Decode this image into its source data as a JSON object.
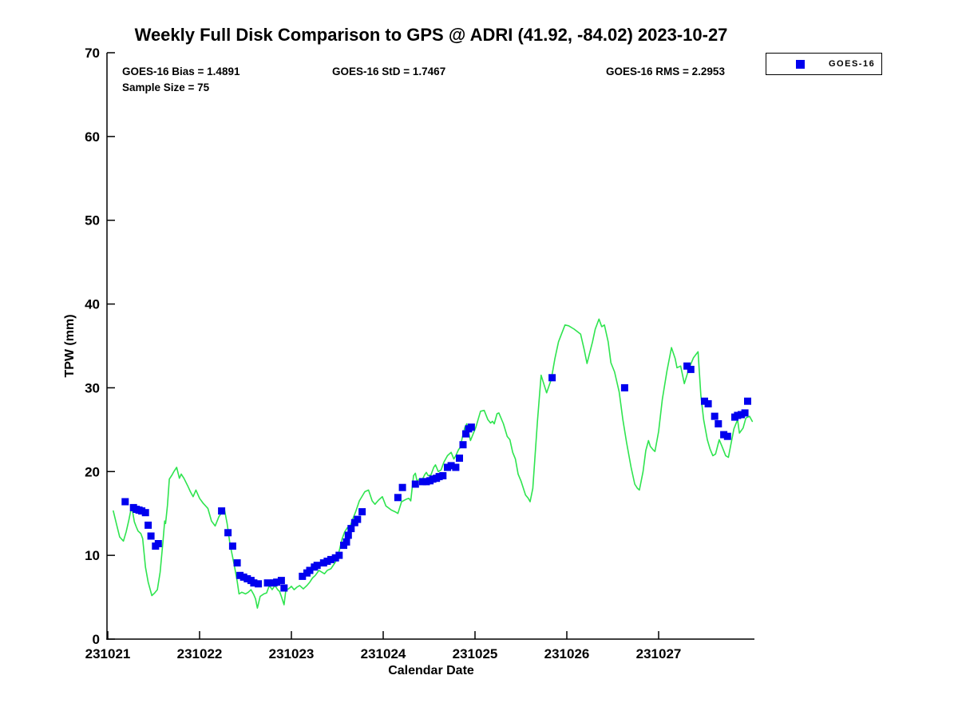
{
  "chart_data": {
    "type": "line",
    "title": "Weekly Full Disk Comparison to GPS @ ADRI (41.92, -84.02) 2023-10-27",
    "xlabel": "Calendar Date",
    "ylabel": "TPW (mm)",
    "annotations": [
      "GOES-16 Bias = 1.4891",
      "GOES-16 StD = 1.7467",
      "GOES-16 RMS = 2.2953",
      "Sample Size = 75"
    ],
    "ylim": [
      0,
      70
    ],
    "yticks": [
      0,
      10,
      20,
      30,
      40,
      50,
      60,
      70
    ],
    "xticks": [
      "231021",
      "231022",
      "231023",
      "231024",
      "231025",
      "231026",
      "231027"
    ],
    "x_base_date": 231021,
    "x_span_days": 7.05,
    "grid": false,
    "legend": {
      "position": "top-right-outside",
      "entries": [
        {
          "label": "GOES-16",
          "marker": "square",
          "color": "#0000ee"
        }
      ]
    },
    "colors": {
      "gps_line": "#2fe44f",
      "goes16_marker": "#0000ee"
    },
    "series": [
      {
        "name": "GPS trace",
        "style": "line",
        "color": "#2fe44f",
        "points": [
          [
            0.06,
            15.3
          ],
          [
            0.1,
            13.5
          ],
          [
            0.13,
            12.2
          ],
          [
            0.17,
            11.7
          ],
          [
            0.2,
            12.8
          ],
          [
            0.23,
            14.2
          ],
          [
            0.26,
            15.9
          ],
          [
            0.29,
            14.0
          ],
          [
            0.31,
            13.4
          ],
          [
            0.33,
            12.9
          ],
          [
            0.36,
            12.6
          ],
          [
            0.38,
            12.0
          ],
          [
            0.41,
            8.6
          ],
          [
            0.44,
            6.8
          ],
          [
            0.48,
            5.2
          ],
          [
            0.51,
            5.5
          ],
          [
            0.54,
            5.9
          ],
          [
            0.57,
            8.0
          ],
          [
            0.6,
            11.5
          ],
          [
            0.62,
            14.1
          ],
          [
            0.63,
            13.8
          ],
          [
            0.65,
            16.0
          ],
          [
            0.67,
            19.1
          ],
          [
            0.7,
            19.6
          ],
          [
            0.72,
            20.0
          ],
          [
            0.75,
            20.5
          ],
          [
            0.78,
            19.2
          ],
          [
            0.8,
            19.7
          ],
          [
            0.83,
            19.2
          ],
          [
            0.87,
            18.3
          ],
          [
            0.9,
            17.6
          ],
          [
            0.93,
            17.0
          ],
          [
            0.96,
            17.8
          ],
          [
            1.0,
            16.8
          ],
          [
            1.04,
            16.2
          ],
          [
            1.09,
            15.6
          ],
          [
            1.13,
            14.1
          ],
          [
            1.17,
            13.5
          ],
          [
            1.21,
            14.6
          ],
          [
            1.24,
            15.1
          ],
          [
            1.27,
            15.5
          ],
          [
            1.3,
            13.8
          ],
          [
            1.33,
            11.4
          ],
          [
            1.38,
            8.7
          ],
          [
            1.41,
            6.9
          ],
          [
            1.43,
            5.4
          ],
          [
            1.46,
            5.6
          ],
          [
            1.5,
            5.4
          ],
          [
            1.53,
            5.6
          ],
          [
            1.56,
            5.9
          ],
          [
            1.59,
            5.3
          ],
          [
            1.61,
            4.8
          ],
          [
            1.63,
            3.7
          ],
          [
            1.66,
            5.1
          ],
          [
            1.7,
            5.4
          ],
          [
            1.73,
            5.5
          ],
          [
            1.76,
            6.4
          ],
          [
            1.79,
            5.9
          ],
          [
            1.82,
            6.4
          ],
          [
            1.85,
            5.9
          ],
          [
            1.87,
            5.7
          ],
          [
            1.89,
            5.1
          ],
          [
            1.92,
            4.1
          ],
          [
            1.94,
            5.9
          ],
          [
            1.97,
            6.0
          ],
          [
            2.0,
            6.3
          ],
          [
            2.03,
            5.9
          ],
          [
            2.06,
            6.2
          ],
          [
            2.09,
            6.4
          ],
          [
            2.13,
            6.0
          ],
          [
            2.17,
            6.4
          ],
          [
            2.2,
            6.8
          ],
          [
            2.23,
            7.3
          ],
          [
            2.26,
            7.6
          ],
          [
            2.3,
            8.2
          ],
          [
            2.33,
            8.0
          ],
          [
            2.36,
            7.8
          ],
          [
            2.39,
            8.2
          ],
          [
            2.43,
            8.4
          ],
          [
            2.48,
            9.2
          ],
          [
            2.52,
            10.5
          ],
          [
            2.55,
            11.9
          ],
          [
            2.58,
            12.8
          ],
          [
            2.61,
            13.3
          ],
          [
            2.63,
            13.1
          ],
          [
            2.66,
            14.1
          ],
          [
            2.7,
            15.2
          ],
          [
            2.74,
            16.5
          ],
          [
            2.8,
            17.6
          ],
          [
            2.84,
            17.8
          ],
          [
            2.88,
            16.5
          ],
          [
            2.91,
            16.1
          ],
          [
            2.95,
            16.6
          ],
          [
            2.99,
            17.0
          ],
          [
            3.03,
            15.9
          ],
          [
            3.09,
            15.4
          ],
          [
            3.13,
            15.2
          ],
          [
            3.16,
            15.0
          ],
          [
            3.2,
            16.4
          ],
          [
            3.25,
            16.7
          ],
          [
            3.28,
            16.8
          ],
          [
            3.3,
            16.5
          ],
          [
            3.33,
            19.5
          ],
          [
            3.35,
            19.8
          ],
          [
            3.37,
            18.8
          ],
          [
            3.39,
            19.1
          ],
          [
            3.42,
            18.9
          ],
          [
            3.45,
            19.6
          ],
          [
            3.47,
            19.9
          ],
          [
            3.49,
            19.5
          ],
          [
            3.52,
            19.6
          ],
          [
            3.55,
            20.5
          ],
          [
            3.57,
            20.8
          ],
          [
            3.6,
            20.0
          ],
          [
            3.63,
            20.2
          ],
          [
            3.66,
            21.1
          ],
          [
            3.7,
            21.9
          ],
          [
            3.74,
            22.3
          ],
          [
            3.77,
            21.5
          ],
          [
            3.79,
            21.9
          ],
          [
            3.82,
            22.6
          ],
          [
            3.84,
            22.9
          ],
          [
            3.86,
            24.0
          ],
          [
            3.89,
            25.3
          ],
          [
            3.91,
            25.7
          ],
          [
            3.95,
            23.7
          ],
          [
            3.98,
            24.5
          ],
          [
            4.01,
            25.3
          ],
          [
            4.06,
            27.2
          ],
          [
            4.1,
            27.3
          ],
          [
            4.14,
            26.2
          ],
          [
            4.17,
            25.8
          ],
          [
            4.19,
            26.0
          ],
          [
            4.21,
            25.7
          ],
          [
            4.24,
            26.9
          ],
          [
            4.26,
            27.0
          ],
          [
            4.31,
            25.7
          ],
          [
            4.35,
            24.2
          ],
          [
            4.38,
            23.8
          ],
          [
            4.41,
            22.3
          ],
          [
            4.44,
            21.5
          ],
          [
            4.47,
            19.7
          ],
          [
            4.5,
            18.9
          ],
          [
            4.55,
            17.2
          ],
          [
            4.58,
            16.8
          ],
          [
            4.6,
            16.4
          ],
          [
            4.63,
            18.0
          ],
          [
            4.68,
            26.0
          ],
          [
            4.72,
            31.5
          ],
          [
            4.78,
            29.4
          ],
          [
            4.83,
            31.0
          ],
          [
            4.87,
            33.5
          ],
          [
            4.91,
            35.5
          ],
          [
            4.98,
            37.5
          ],
          [
            5.02,
            37.4
          ],
          [
            5.08,
            37.0
          ],
          [
            5.15,
            36.4
          ],
          [
            5.19,
            34.5
          ],
          [
            5.22,
            32.9
          ],
          [
            5.28,
            35.5
          ],
          [
            5.31,
            37.0
          ],
          [
            5.35,
            38.2
          ],
          [
            5.38,
            37.3
          ],
          [
            5.41,
            37.5
          ],
          [
            5.45,
            35.5
          ],
          [
            5.48,
            33.0
          ],
          [
            5.52,
            31.9
          ],
          [
            5.57,
            29.5
          ],
          [
            5.61,
            26.2
          ],
          [
            5.65,
            23.5
          ],
          [
            5.7,
            20.5
          ],
          [
            5.74,
            18.5
          ],
          [
            5.77,
            18.0
          ],
          [
            5.79,
            17.8
          ],
          [
            5.83,
            20.0
          ],
          [
            5.86,
            22.5
          ],
          [
            5.89,
            23.7
          ],
          [
            5.91,
            23.0
          ],
          [
            5.94,
            22.6
          ],
          [
            5.96,
            22.4
          ],
          [
            6.0,
            24.8
          ],
          [
            6.04,
            28.6
          ],
          [
            6.09,
            32.0
          ],
          [
            6.14,
            34.8
          ],
          [
            6.18,
            33.5
          ],
          [
            6.2,
            32.4
          ],
          [
            6.24,
            32.6
          ],
          [
            6.28,
            30.5
          ],
          [
            6.33,
            32.3
          ],
          [
            6.38,
            33.6
          ],
          [
            6.43,
            34.3
          ],
          [
            6.46,
            29.1
          ],
          [
            6.49,
            26.2
          ],
          [
            6.53,
            23.8
          ],
          [
            6.56,
            22.7
          ],
          [
            6.59,
            21.9
          ],
          [
            6.62,
            22.1
          ],
          [
            6.66,
            23.8
          ],
          [
            6.69,
            23.0
          ],
          [
            6.73,
            21.9
          ],
          [
            6.76,
            21.7
          ],
          [
            6.82,
            25.1
          ],
          [
            6.86,
            26.2
          ],
          [
            6.88,
            24.6
          ],
          [
            6.92,
            25.2
          ],
          [
            6.95,
            26.4
          ],
          [
            6.99,
            26.6
          ],
          [
            7.02,
            26.0
          ]
        ]
      },
      {
        "name": "GOES-16",
        "style": "scatter-square",
        "color": "#0000ee",
        "points": [
          [
            0.19,
            16.4
          ],
          [
            0.28,
            15.7
          ],
          [
            0.31,
            15.5
          ],
          [
            0.34,
            15.4
          ],
          [
            0.37,
            15.3
          ],
          [
            0.41,
            15.1
          ],
          [
            0.44,
            13.6
          ],
          [
            0.47,
            12.3
          ],
          [
            0.52,
            11.1
          ],
          [
            0.55,
            11.4
          ],
          [
            1.24,
            15.3
          ],
          [
            1.31,
            12.7
          ],
          [
            1.36,
            11.1
          ],
          [
            1.41,
            9.1
          ],
          [
            1.44,
            7.6
          ],
          [
            1.48,
            7.4
          ],
          [
            1.52,
            7.2
          ],
          [
            1.56,
            7.0
          ],
          [
            1.59,
            6.7
          ],
          [
            1.64,
            6.6
          ],
          [
            1.74,
            6.7
          ],
          [
            1.81,
            6.7
          ],
          [
            1.84,
            6.8
          ],
          [
            1.89,
            7.0
          ],
          [
            1.92,
            6.1
          ],
          [
            2.12,
            7.5
          ],
          [
            2.17,
            7.9
          ],
          [
            2.2,
            8.2
          ],
          [
            2.25,
            8.6
          ],
          [
            2.28,
            8.8
          ],
          [
            2.35,
            9.1
          ],
          [
            2.39,
            9.3
          ],
          [
            2.43,
            9.5
          ],
          [
            2.48,
            9.7
          ],
          [
            2.52,
            10.0
          ],
          [
            2.57,
            11.2
          ],
          [
            2.6,
            11.6
          ],
          [
            2.62,
            12.4
          ],
          [
            2.65,
            13.2
          ],
          [
            2.69,
            13.9
          ],
          [
            2.72,
            14.3
          ],
          [
            2.77,
            15.2
          ],
          [
            3.16,
            16.9
          ],
          [
            3.21,
            18.1
          ],
          [
            3.35,
            18.5
          ],
          [
            3.43,
            18.8
          ],
          [
            3.47,
            18.8
          ],
          [
            3.51,
            18.9
          ],
          [
            3.54,
            19.1
          ],
          [
            3.58,
            19.2
          ],
          [
            3.61,
            19.4
          ],
          [
            3.65,
            19.5
          ],
          [
            3.7,
            20.5
          ],
          [
            3.74,
            20.7
          ],
          [
            3.79,
            20.5
          ],
          [
            3.83,
            21.6
          ],
          [
            3.87,
            23.2
          ],
          [
            3.9,
            24.5
          ],
          [
            3.93,
            25.1
          ],
          [
            3.96,
            25.3
          ],
          [
            4.84,
            31.2
          ],
          [
            5.63,
            30.0
          ],
          [
            6.31,
            32.6
          ],
          [
            6.35,
            32.2
          ],
          [
            6.5,
            28.4
          ],
          [
            6.54,
            28.1
          ],
          [
            6.61,
            26.6
          ],
          [
            6.65,
            25.7
          ],
          [
            6.71,
            24.4
          ],
          [
            6.75,
            24.2
          ],
          [
            6.83,
            26.5
          ],
          [
            6.86,
            26.7
          ],
          [
            6.9,
            26.8
          ],
          [
            6.94,
            27.0
          ],
          [
            6.97,
            28.4
          ]
        ]
      }
    ]
  }
}
